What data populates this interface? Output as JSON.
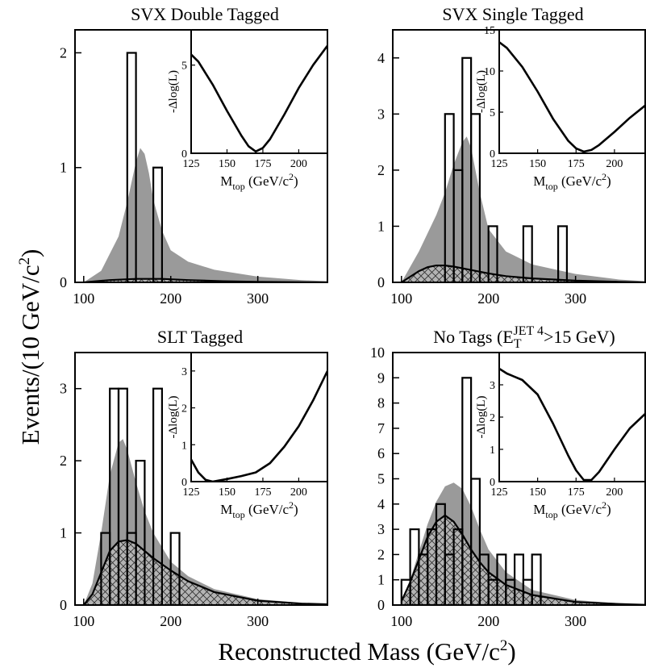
{
  "figure": {
    "ylabel_main": "Events/(10 GeV/c",
    "ylabel_sup": "2",
    "ylabel_close": ")",
    "xlabel_main": "Reconstructed Mass (GeV/c",
    "xlabel_sup": "2",
    "xlabel_close": ")"
  },
  "chart_data": [
    {
      "type": "bar",
      "title": "SVX Double Tagged",
      "xlim": [
        90,
        380
      ],
      "ylim": [
        0,
        2.2
      ],
      "xticks": [
        100,
        200,
        300
      ],
      "yticks": [
        0,
        1,
        2
      ],
      "bin_width": 10,
      "data": [
        {
          "x": 150,
          "y": 2
        },
        {
          "x": 160,
          "y": 0
        },
        {
          "x": 170,
          "y": 0
        },
        {
          "x": 180,
          "y": 1
        }
      ],
      "signal_total": {
        "x": [
          100,
          120,
          140,
          150,
          160,
          165,
          170,
          175,
          180,
          190,
          200,
          220,
          250,
          300,
          350,
          380
        ],
        "y": [
          0,
          0.1,
          0.4,
          0.7,
          1.05,
          1.17,
          1.12,
          0.95,
          0.72,
          0.45,
          0.28,
          0.18,
          0.11,
          0.05,
          0.02,
          0.01
        ]
      },
      "background": {
        "x": [
          100,
          130,
          160,
          190,
          220,
          260,
          300,
          380
        ],
        "y": [
          0,
          0.02,
          0.03,
          0.03,
          0.02,
          0.01,
          0.005,
          0
        ]
      },
      "inset": {
        "xlabel": "M",
        "xlabel_sub": "top",
        "xlabel_unit": " (GeV/c",
        "xlabel_unit_sup": "2",
        "xlabel_unit_close": ")",
        "ylabel": "-Δlog(L)",
        "xlim": [
          125,
          220
        ],
        "ylim": [
          0,
          7
        ],
        "xticks": [
          125,
          150,
          175,
          200
        ],
        "yticks": [
          0,
          5
        ],
        "curve": {
          "x": [
            125,
            130,
            140,
            150,
            160,
            165,
            170,
            175,
            180,
            190,
            200,
            210,
            220
          ],
          "y": [
            5.6,
            5.2,
            3.9,
            2.4,
            1.0,
            0.4,
            0.1,
            0.3,
            0.8,
            2.2,
            3.7,
            5.0,
            6.1
          ]
        }
      }
    },
    {
      "type": "bar",
      "title": "SVX Single Tagged",
      "xlim": [
        90,
        380
      ],
      "ylim": [
        0,
        4.5
      ],
      "xticks": [
        100,
        200,
        300
      ],
      "yticks": [
        0,
        1,
        2,
        3,
        4
      ],
      "bin_width": 10,
      "data": [
        {
          "x": 150,
          "y": 3
        },
        {
          "x": 160,
          "y": 2
        },
        {
          "x": 170,
          "y": 4
        },
        {
          "x": 180,
          "y": 3
        },
        {
          "x": 200,
          "y": 1
        },
        {
          "x": 240,
          "y": 1
        },
        {
          "x": 280,
          "y": 1
        }
      ],
      "signal_total": {
        "x": [
          100,
          120,
          140,
          150,
          160,
          170,
          175,
          180,
          190,
          200,
          220,
          250,
          300,
          350,
          380
        ],
        "y": [
          0,
          0.55,
          1.2,
          1.6,
          2.1,
          2.5,
          2.6,
          2.4,
          1.6,
          0.95,
          0.55,
          0.32,
          0.15,
          0.05,
          0.02
        ]
      },
      "background": {
        "x": [
          100,
          110,
          120,
          130,
          140,
          150,
          160,
          180,
          200,
          220,
          250,
          300,
          350,
          380
        ],
        "y": [
          0,
          0.1,
          0.2,
          0.27,
          0.3,
          0.3,
          0.28,
          0.22,
          0.16,
          0.11,
          0.07,
          0.03,
          0.01,
          0
        ]
      },
      "inset": {
        "xlabel": "M",
        "xlabel_sub": "top",
        "xlabel_unit": " (GeV/c",
        "xlabel_unit_sup": "2",
        "xlabel_unit_close": ")",
        "ylabel": "-Δlog(L)",
        "xlim": [
          125,
          220
        ],
        "ylim": [
          0,
          15
        ],
        "xticks": [
          125,
          150,
          175,
          200
        ],
        "yticks": [
          0,
          5,
          10,
          15
        ],
        "curve": {
          "x": [
            125,
            130,
            140,
            150,
            160,
            170,
            175,
            180,
            185,
            190,
            200,
            210,
            220
          ],
          "y": [
            13.5,
            12.8,
            10.5,
            7.5,
            4.2,
            1.5,
            0.6,
            0.2,
            0.4,
            1.0,
            2.6,
            4.3,
            5.8
          ]
        }
      }
    },
    {
      "type": "bar",
      "title": "SLT Tagged",
      "xlim": [
        90,
        380
      ],
      "ylim": [
        0,
        3.5
      ],
      "xticks": [
        100,
        200,
        300
      ],
      "yticks": [
        0,
        1,
        2,
        3
      ],
      "bin_width": 10,
      "data": [
        {
          "x": 120,
          "y": 1
        },
        {
          "x": 130,
          "y": 3
        },
        {
          "x": 140,
          "y": 3
        },
        {
          "x": 150,
          "y": 1
        },
        {
          "x": 160,
          "y": 2
        },
        {
          "x": 170,
          "y": 0
        },
        {
          "x": 180,
          "y": 3
        },
        {
          "x": 190,
          "y": 0
        },
        {
          "x": 200,
          "y": 1
        }
      ],
      "signal_total": {
        "x": [
          100,
          110,
          120,
          130,
          140,
          145,
          150,
          160,
          170,
          180,
          200,
          220,
          250,
          300,
          350,
          380
        ],
        "y": [
          0,
          0.3,
          1.0,
          1.8,
          2.25,
          2.3,
          2.15,
          1.7,
          1.3,
          1.0,
          0.6,
          0.4,
          0.22,
          0.08,
          0.03,
          0.01
        ]
      },
      "background": {
        "x": [
          100,
          110,
          120,
          130,
          140,
          150,
          160,
          170,
          180,
          200,
          220,
          250,
          300,
          350,
          380
        ],
        "y": [
          0,
          0.15,
          0.45,
          0.75,
          0.88,
          0.9,
          0.85,
          0.75,
          0.65,
          0.48,
          0.33,
          0.18,
          0.06,
          0.02,
          0.01
        ]
      },
      "inset": {
        "xlabel": "M",
        "xlabel_sub": "top",
        "xlabel_unit": " (GeV/c",
        "xlabel_unit_sup": "2",
        "xlabel_unit_close": ")",
        "ylabel": "-Δlog(L)",
        "xlim": [
          125,
          220
        ],
        "ylim": [
          0,
          3.5
        ],
        "xticks": [
          125,
          150,
          175,
          200
        ],
        "yticks": [
          0,
          1,
          2,
          3
        ],
        "curve": {
          "x": [
            125,
            130,
            135,
            140,
            150,
            160,
            170,
            180,
            190,
            200,
            210,
            220
          ],
          "y": [
            0.6,
            0.25,
            0.05,
            0.0,
            0.07,
            0.15,
            0.25,
            0.5,
            0.95,
            1.5,
            2.2,
            3.0
          ]
        }
      }
    },
    {
      "type": "bar",
      "title": "No Tags (E",
      "title_sub": "T",
      "title_sup": "JET 4",
      "title_rest": ">15 GeV)",
      "xlim": [
        90,
        380
      ],
      "ylim": [
        0,
        10
      ],
      "xticks": [
        100,
        200,
        300
      ],
      "yticks": [
        0,
        1,
        2,
        3,
        4,
        5,
        6,
        7,
        8,
        9,
        10
      ],
      "bin_width": 10,
      "data": [
        {
          "x": 100,
          "y": 1
        },
        {
          "x": 110,
          "y": 3
        },
        {
          "x": 120,
          "y": 2
        },
        {
          "x": 130,
          "y": 3
        },
        {
          "x": 140,
          "y": 4
        },
        {
          "x": 150,
          "y": 2
        },
        {
          "x": 160,
          "y": 3
        },
        {
          "x": 170,
          "y": 9
        },
        {
          "x": 180,
          "y": 5
        },
        {
          "x": 190,
          "y": 2
        },
        {
          "x": 200,
          "y": 1
        },
        {
          "x": 210,
          "y": 2
        },
        {
          "x": 220,
          "y": 1
        },
        {
          "x": 230,
          "y": 2
        },
        {
          "x": 240,
          "y": 1
        },
        {
          "x": 250,
          "y": 2
        }
      ],
      "signal_total": {
        "x": [
          100,
          110,
          120,
          130,
          140,
          150,
          160,
          170,
          180,
          190,
          200,
          220,
          250,
          300,
          350,
          380
        ],
        "y": [
          0.2,
          1.0,
          2.1,
          3.2,
          4.1,
          4.7,
          4.85,
          4.6,
          3.9,
          3.0,
          2.2,
          1.3,
          0.6,
          0.2,
          0.06,
          0.02
        ]
      },
      "background": {
        "x": [
          100,
          110,
          120,
          130,
          140,
          150,
          160,
          170,
          180,
          190,
          200,
          220,
          250,
          300,
          350,
          380
        ],
        "y": [
          0.15,
          0.9,
          1.8,
          2.7,
          3.3,
          3.55,
          3.3,
          2.8,
          2.2,
          1.7,
          1.3,
          0.8,
          0.4,
          0.12,
          0.04,
          0.01
        ]
      },
      "inset": {
        "xlabel": "M",
        "xlabel_sub": "top",
        "xlabel_unit": " (GeV/c",
        "xlabel_unit_sup": "2",
        "xlabel_unit_close": ")",
        "ylabel": "-Δlog(L)",
        "xlim": [
          125,
          220
        ],
        "ylim": [
          0,
          4
        ],
        "xticks": [
          125,
          150,
          175,
          200
        ],
        "yticks": [
          0,
          1,
          2,
          3
        ],
        "curve": {
          "x": [
            125,
            130,
            140,
            150,
            160,
            170,
            175,
            180,
            185,
            190,
            200,
            210,
            220
          ],
          "y": [
            3.5,
            3.35,
            3.15,
            2.7,
            1.8,
            0.8,
            0.35,
            0.05,
            0.05,
            0.3,
            1.0,
            1.65,
            2.1
          ]
        }
      }
    }
  ]
}
